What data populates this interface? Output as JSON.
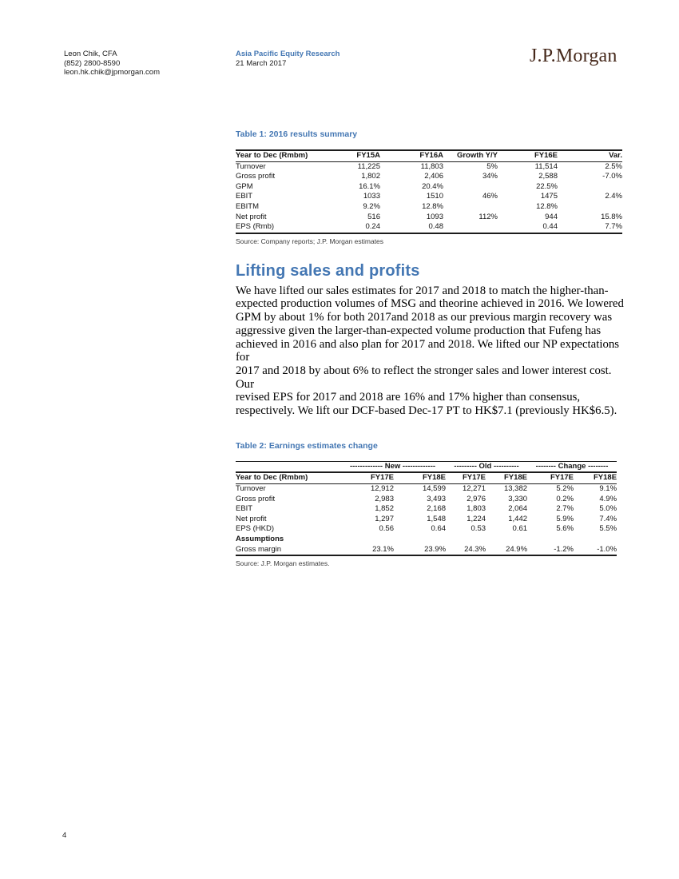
{
  "header": {
    "analyst_name": "Leon Chik, CFA",
    "analyst_phone": "(852) 2800-8590",
    "analyst_email": "leon.hk.chik@jpmorgan.com",
    "publication_title": "Asia Pacific Equity Research",
    "publication_date": "21 March 2017",
    "logo_text": "J.P.Morgan"
  },
  "colors": {
    "accent_blue": "#4477B3",
    "logo_brown": "#45281A"
  },
  "table1": {
    "title": "Table 1: 2016 results summary",
    "columns": [
      "Year to Dec (Rmbm)",
      "FY15A",
      "FY16A",
      "Growth Y/Y",
      "FY16E",
      "Var."
    ],
    "rows": [
      [
        "Turnover",
        "11,225",
        "11,803",
        "5%",
        "11,514",
        "2.5%"
      ],
      [
        "Gross profit",
        "1,802",
        "2,406",
        "34%",
        "2,588",
        "-7.0%"
      ],
      [
        "GPM",
        "16.1%",
        "20.4%",
        "",
        "22.5%",
        ""
      ],
      [
        "EBIT",
        "1033",
        "1510",
        "46%",
        "1475",
        "2.4%"
      ],
      [
        "EBITM",
        "9.2%",
        "12.8%",
        "",
        "12.8%",
        ""
      ],
      [
        "Net profit",
        "516",
        "1093",
        "112%",
        "944",
        "15.8%"
      ],
      [
        "EPS (Rmb)",
        "0.24",
        "0.48",
        "",
        "0.44",
        "7.7%"
      ]
    ],
    "source": "Source: Company reports; J.P. Morgan estimates"
  },
  "section": {
    "heading": "Lifting sales and profits",
    "paragraph_lines": [
      "We have lifted our sales estimates for 2017 and 2018 to match the higher-than-",
      "expected production volumes of MSG and theorine achieved in 2016. We lowered",
      "GPM by about 1% for both 2017and 2018 as our previous margin recovery was",
      "aggressive given the larger-than-expected volume production that Fufeng has",
      "achieved in 2016 and also plan for 2017 and 2018. We lifted our NP expectations for",
      "2017 and 2018 by about 6% to reflect the stronger sales and lower interest cost. Our",
      "revised EPS for 2017 and 2018 are 16% and 17% higher than consensus,",
      "respectively. We lift our DCF-based Dec-17 PT to HK$7.1 (previously HK$6.5)."
    ]
  },
  "table2": {
    "title": "Table 2: Earnings estimates change",
    "group_headers": [
      "------------- New -------------",
      "--------- Old ----------",
      "-------- Change --------"
    ],
    "columns": [
      "Year to Dec (Rmbm)",
      "FY17E",
      "FY18E",
      "FY17E",
      "FY18E",
      "FY17E",
      "FY18E"
    ],
    "rows": [
      [
        "Turnover",
        "12,912",
        "14,599",
        "12,271",
        "13,382",
        "5.2%",
        "9.1%"
      ],
      [
        "Gross profit",
        "2,983",
        "3,493",
        "2,976",
        "3,330",
        "0.2%",
        "4.9%"
      ],
      [
        "EBIT",
        "1,852",
        "2,168",
        "1,803",
        "2,064",
        "2.7%",
        "5.0%"
      ],
      [
        "Net profit",
        "1,297",
        "1,548",
        "1,224",
        "1,442",
        "5.9%",
        "7.4%"
      ],
      [
        "EPS (HKD)",
        "0.56",
        "0.64",
        "0.53",
        "0.61",
        "5.6%",
        "5.5%"
      ],
      [
        "Assumptions",
        "",
        "",
        "",
        "",
        "",
        ""
      ],
      [
        "Gross margin",
        "23.1%",
        "23.9%",
        "24.3%",
        "24.9%",
        "-1.2%",
        "-1.0%"
      ]
    ],
    "source": "Source: J.P. Morgan estimates."
  },
  "footer": {
    "page_number": "4"
  }
}
